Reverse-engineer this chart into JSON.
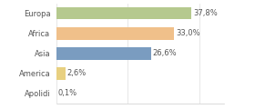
{
  "categories": [
    "Europa",
    "Africa",
    "Asia",
    "America",
    "Apolidi"
  ],
  "values": [
    37.8,
    33.0,
    26.6,
    2.6,
    0.1
  ],
  "labels": [
    "37,8%",
    "33,0%",
    "26,6%",
    "2,6%",
    "0,1%"
  ],
  "bar_colors": [
    "#b5c98e",
    "#f0c08a",
    "#7a9cc0",
    "#e8d080",
    "#b5c98e"
  ],
  "background_color": "#ffffff",
  "xlim_max": 47,
  "bar_height": 0.62,
  "label_fontsize": 6.0,
  "value_fontsize": 6.0,
  "grid_color": "#dddddd",
  "text_color": "#555555"
}
